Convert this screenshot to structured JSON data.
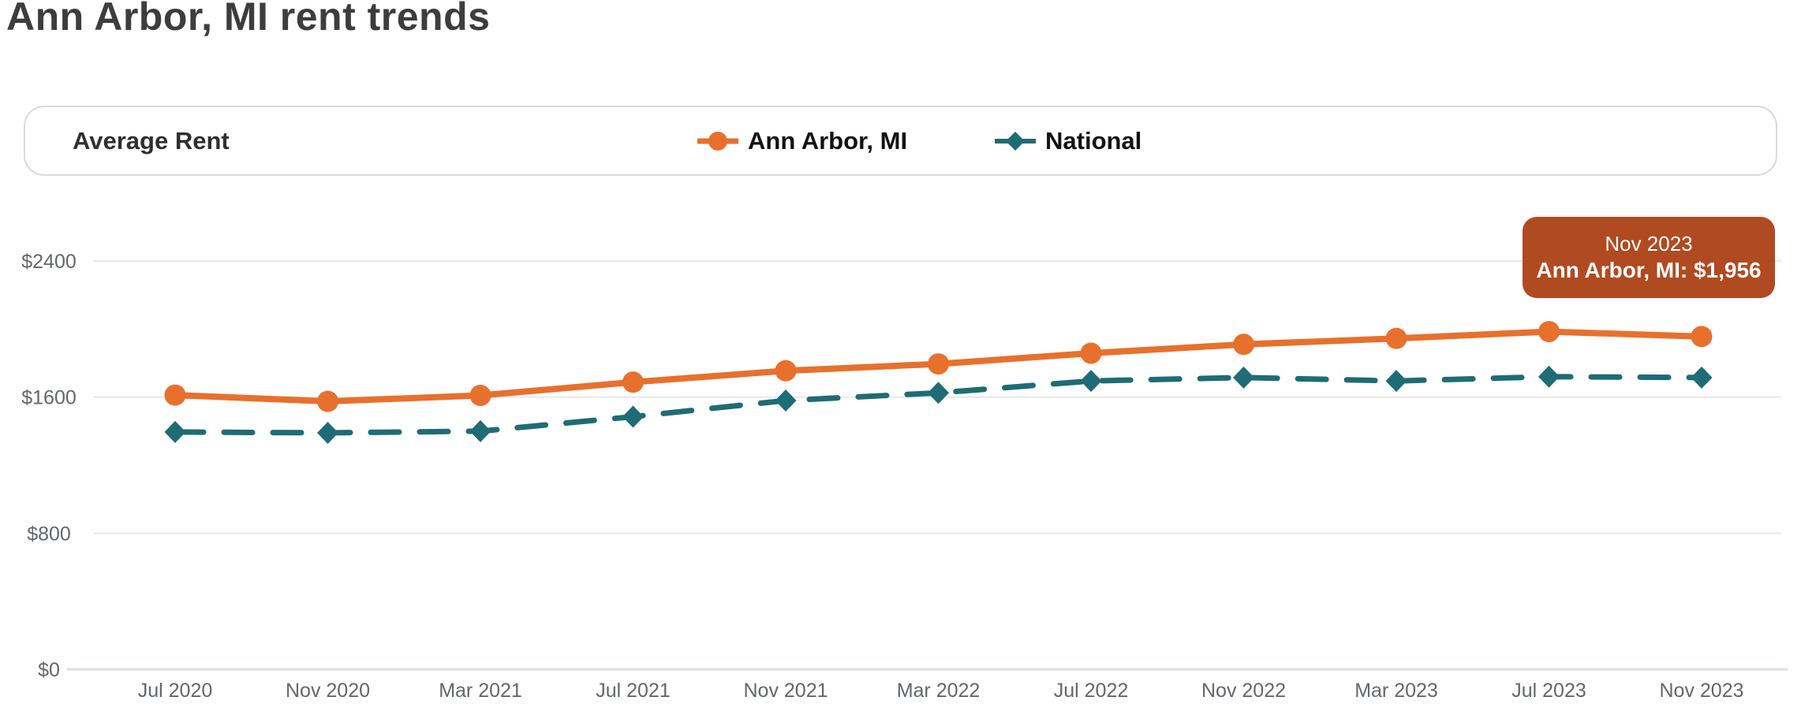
{
  "page": {
    "title": "Ann Arbor, MI rent trends"
  },
  "panel": {
    "label": "Average Rent"
  },
  "legend": {
    "items": [
      {
        "label": "Ann Arbor, MI",
        "color": "#E8702D",
        "marker": "circle-on-line"
      },
      {
        "label": "National",
        "color": "#1E6C75",
        "marker": "diamond-on-line"
      }
    ]
  },
  "tooltip": {
    "date": "Nov 2023",
    "value_line": "Ann Arbor, MI: $1,956",
    "bg_color": "#B04A21",
    "text_color": "#FFFFFF"
  },
  "chart_data": {
    "type": "line",
    "title": "Average Rent",
    "x": [
      "Jul 2020",
      "Nov 2020",
      "Mar 2021",
      "Jul 2021",
      "Nov 2021",
      "Mar 2022",
      "Jul 2022",
      "Nov 2022",
      "Mar 2023",
      "Jul 2023",
      "Nov 2023"
    ],
    "series": [
      {
        "name": "Ann Arbor, MI",
        "color": "#E8702D",
        "line_style": "solid",
        "marker": "circle",
        "values": [
          1612,
          1575,
          1610,
          1688,
          1755,
          1795,
          1858,
          1910,
          1945,
          1985,
          1956
        ]
      },
      {
        "name": "National",
        "color": "#1E6C75",
        "line_style": "dashed",
        "marker": "diamond",
        "values": [
          1395,
          1390,
          1400,
          1485,
          1580,
          1625,
          1695,
          1715,
          1695,
          1720,
          1715
        ]
      }
    ],
    "xlabel": "",
    "ylabel": "",
    "ylim": [
      0,
      2400
    ],
    "yticks": [
      0,
      800,
      1600,
      2400
    ],
    "ytick_labels": [
      "$0",
      "$800",
      "$1600",
      "$2400"
    ],
    "grid": true,
    "legend_position": "top",
    "highlighted_point": {
      "series": "Ann Arbor, MI",
      "x": "Nov 2023",
      "value": 1956
    }
  }
}
